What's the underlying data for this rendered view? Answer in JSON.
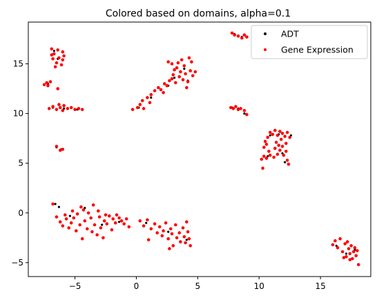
{
  "chart_data": {
    "type": "scatter",
    "title": "Colored based on domains, alpha=0.1",
    "xlabel": "",
    "ylabel": "",
    "xlim": [
      -8.8,
      19.1
    ],
    "ylim": [
      -6.4,
      19.2
    ],
    "x_ticks": [
      -5,
      0,
      5,
      10,
      15
    ],
    "y_ticks": [
      -5,
      0,
      5,
      10,
      15
    ],
    "x_tick_labels": [
      "−5",
      "0",
      "5",
      "10",
      "15"
    ],
    "y_tick_labels": [
      "−5",
      "0",
      "5",
      "10",
      "15"
    ],
    "grid": false,
    "legend": {
      "placement": "top-right"
    },
    "series": [
      {
        "name": "ADT",
        "color": "#000000",
        "marker": "dot",
        "points": [
          [
            -6.6,
            0.9
          ],
          [
            -6.3,
            0.6
          ],
          [
            -5.4,
            -0.3
          ],
          [
            -4.2,
            0.5
          ],
          [
            -2.8,
            -1.2
          ],
          [
            -1.4,
            -0.9
          ],
          [
            0.8,
            -1.0
          ],
          [
            2.6,
            -1.9
          ],
          [
            4.1,
            -2.7
          ],
          [
            -6.7,
            16.3
          ],
          [
            -6.4,
            15.5
          ],
          [
            -6.8,
            10.6
          ],
          [
            -5.9,
            10.5
          ],
          [
            -4.8,
            10.4
          ],
          [
            -7.2,
            13.0
          ],
          [
            -6.5,
            6.6
          ],
          [
            -6.1,
            6.4
          ],
          [
            0.2,
            10.6
          ],
          [
            1.2,
            11.6
          ],
          [
            2.6,
            12.8
          ],
          [
            3.1,
            13.6
          ],
          [
            3.9,
            14.5
          ],
          [
            4.2,
            13.3
          ],
          [
            8.0,
            18.0
          ],
          [
            8.6,
            17.7
          ],
          [
            7.8,
            10.6
          ],
          [
            8.3,
            10.5
          ],
          [
            8.8,
            10.0
          ],
          [
            10.9,
            7.8
          ],
          [
            11.6,
            7.9
          ],
          [
            12.6,
            7.8
          ],
          [
            10.7,
            5.7
          ],
          [
            11.9,
            6.0
          ],
          [
            12.1,
            5.1
          ],
          [
            16.3,
            -3.3
          ],
          [
            17.1,
            -4.1
          ],
          [
            17.8,
            -3.7
          ],
          [
            18.1,
            -5.2
          ]
        ]
      },
      {
        "name": "Gene Expression",
        "color": "#ff0000",
        "marker": "dot",
        "points": [
          [
            -6.9,
            16.5
          ],
          [
            -6.7,
            16.0
          ],
          [
            -6.4,
            16.4
          ],
          [
            -6.0,
            16.2
          ],
          [
            -5.9,
            15.8
          ],
          [
            -6.3,
            15.6
          ],
          [
            -6.8,
            15.5
          ],
          [
            -6.5,
            15.1
          ],
          [
            -6.1,
            14.9
          ],
          [
            -6.6,
            14.7
          ],
          [
            -6.9,
            15.9
          ],
          [
            -6.0,
            15.4
          ],
          [
            -7.5,
            12.9
          ],
          [
            -7.2,
            12.8
          ],
          [
            -7.0,
            13.2
          ],
          [
            -7.3,
            13.1
          ],
          [
            -6.4,
            12.5
          ],
          [
            -7.1,
            10.5
          ],
          [
            -6.8,
            10.7
          ],
          [
            -6.5,
            10.4
          ],
          [
            -6.2,
            10.6
          ],
          [
            -5.9,
            10.8
          ],
          [
            -5.6,
            10.5
          ],
          [
            -5.3,
            10.6
          ],
          [
            -5.0,
            10.4
          ],
          [
            -4.7,
            10.5
          ],
          [
            -4.4,
            10.4
          ],
          [
            -6.0,
            10.3
          ],
          [
            -6.3,
            10.9
          ],
          [
            -6.5,
            6.7
          ],
          [
            -6.2,
            6.3
          ],
          [
            -6.0,
            6.4
          ],
          [
            -6.8,
            0.9
          ],
          [
            -6.5,
            -0.4
          ],
          [
            -6.2,
            -0.9
          ],
          [
            -6.0,
            -1.3
          ],
          [
            -5.7,
            -0.6
          ],
          [
            -5.5,
            -1.5
          ],
          [
            -5.3,
            -1.0
          ],
          [
            -5.1,
            -0.5
          ],
          [
            -4.9,
            -1.8
          ],
          [
            -4.8,
            -0.1
          ],
          [
            -4.6,
            -1.2
          ],
          [
            -4.4,
            -2.6
          ],
          [
            -4.3,
            0.3
          ],
          [
            -4.2,
            -0.8
          ],
          [
            -4.0,
            -1.6
          ],
          [
            -3.9,
            0.0
          ],
          [
            -3.7,
            -0.5
          ],
          [
            -3.6,
            -1.9
          ],
          [
            -3.5,
            0.8
          ],
          [
            -3.4,
            -1.2
          ],
          [
            -3.2,
            -2.2
          ],
          [
            -3.0,
            -0.4
          ],
          [
            -2.9,
            -1.5
          ],
          [
            -2.7,
            -2.5
          ],
          [
            -2.6,
            -0.8
          ],
          [
            -2.4,
            -1.1
          ],
          [
            -2.2,
            -0.3
          ],
          [
            -2.0,
            -1.7
          ],
          [
            -1.9,
            -0.6
          ],
          [
            -1.7,
            -1.0
          ],
          [
            -1.6,
            -0.2
          ],
          [
            -1.4,
            -0.5
          ],
          [
            -1.2,
            -0.8
          ],
          [
            -1.0,
            -1.1
          ],
          [
            -0.8,
            -0.6
          ],
          [
            -0.6,
            -1.4
          ],
          [
            -5.8,
            -0.2
          ],
          [
            -5.2,
            0.2
          ],
          [
            -4.5,
            0.6
          ],
          [
            -3.1,
            0.2
          ],
          [
            -2.5,
            -0.2
          ],
          [
            0.3,
            -0.8
          ],
          [
            0.6,
            -1.3
          ],
          [
            0.9,
            -0.7
          ],
          [
            1.2,
            -1.6
          ],
          [
            1.5,
            -1.1
          ],
          [
            1.7,
            -2.0
          ],
          [
            1.9,
            -1.4
          ],
          [
            2.1,
            -2.3
          ],
          [
            2.2,
            -1.8
          ],
          [
            2.4,
            -1.0
          ],
          [
            2.6,
            -2.6
          ],
          [
            2.8,
            -1.6
          ],
          [
            2.9,
            -2.1
          ],
          [
            3.0,
            -3.3
          ],
          [
            3.2,
            -1.2
          ],
          [
            3.3,
            -2.5
          ],
          [
            3.5,
            -2.0
          ],
          [
            3.6,
            -2.9
          ],
          [
            3.8,
            -1.5
          ],
          [
            3.9,
            -2.4
          ],
          [
            4.0,
            -3.0
          ],
          [
            4.2,
            -1.9
          ],
          [
            4.3,
            -2.6
          ],
          [
            4.4,
            -3.3
          ],
          [
            2.7,
            -3.6
          ],
          [
            4.1,
            -0.9
          ],
          [
            1.0,
            -2.7
          ],
          [
            -0.3,
            10.4
          ],
          [
            0.1,
            10.6
          ],
          [
            0.3,
            10.9
          ],
          [
            0.5,
            11.3
          ],
          [
            0.6,
            10.5
          ],
          [
            0.9,
            11.6
          ],
          [
            1.2,
            11.9
          ],
          [
            1.5,
            12.3
          ],
          [
            1.8,
            12.6
          ],
          [
            2.0,
            12.4
          ],
          [
            2.3,
            13.0
          ],
          [
            2.5,
            12.8
          ],
          [
            2.7,
            13.3
          ],
          [
            2.9,
            13.5
          ],
          [
            3.0,
            13.9
          ],
          [
            3.2,
            13.1
          ],
          [
            3.3,
            14.6
          ],
          [
            3.4,
            15.1
          ],
          [
            3.5,
            13.7
          ],
          [
            3.6,
            14.2
          ],
          [
            3.7,
            15.4
          ],
          [
            3.8,
            13.4
          ],
          [
            3.9,
            14.8
          ],
          [
            4.0,
            14.0
          ],
          [
            4.1,
            12.6
          ],
          [
            4.2,
            13.2
          ],
          [
            4.4,
            14.3
          ],
          [
            4.6,
            13.8
          ],
          [
            4.8,
            14.2
          ],
          [
            2.6,
            15.2
          ],
          [
            2.9,
            15.0
          ],
          [
            3.1,
            14.4
          ],
          [
            4.3,
            15.6
          ],
          [
            4.5,
            15.2
          ],
          [
            1.1,
            11.1
          ],
          [
            2.2,
            12.1
          ],
          [
            7.8,
            18.1
          ],
          [
            8.0,
            17.9
          ],
          [
            8.3,
            17.8
          ],
          [
            8.6,
            17.6
          ],
          [
            8.8,
            17.9
          ],
          [
            9.0,
            17.7
          ],
          [
            7.7,
            10.6
          ],
          [
            7.9,
            10.5
          ],
          [
            8.1,
            10.7
          ],
          [
            8.3,
            10.4
          ],
          [
            8.5,
            10.5
          ],
          [
            8.8,
            10.3
          ],
          [
            9.0,
            9.9
          ],
          [
            10.7,
            7.6
          ],
          [
            10.9,
            8.1
          ],
          [
            11.1,
            7.9
          ],
          [
            11.3,
            8.3
          ],
          [
            11.5,
            7.8
          ],
          [
            11.7,
            8.2
          ],
          [
            11.9,
            8.0
          ],
          [
            12.1,
            7.7
          ],
          [
            12.3,
            8.1
          ],
          [
            12.5,
            7.6
          ],
          [
            11.4,
            7.1
          ],
          [
            11.8,
            7.4
          ],
          [
            10.4,
            6.6
          ],
          [
            10.6,
            6.9
          ],
          [
            10.8,
            6.2
          ],
          [
            10.2,
            5.4
          ],
          [
            10.4,
            5.7
          ],
          [
            10.6,
            5.5
          ],
          [
            10.9,
            5.8
          ],
          [
            11.2,
            5.6
          ],
          [
            11.5,
            5.9
          ],
          [
            11.7,
            6.3
          ],
          [
            11.9,
            6.7
          ],
          [
            12.0,
            5.8
          ],
          [
            12.2,
            6.2
          ],
          [
            12.3,
            5.3
          ],
          [
            12.4,
            4.9
          ],
          [
            11.3,
            6.5
          ],
          [
            11.6,
            6.8
          ],
          [
            10.3,
            4.5
          ],
          [
            10.5,
            7.2
          ],
          [
            12.2,
            7.0
          ],
          [
            16.0,
            -3.2
          ],
          [
            16.2,
            -2.8
          ],
          [
            16.4,
            -3.5
          ],
          [
            16.6,
            -2.6
          ],
          [
            16.8,
            -3.9
          ],
          [
            17.0,
            -3.1
          ],
          [
            17.1,
            -4.4
          ],
          [
            17.2,
            -2.9
          ],
          [
            17.3,
            -3.6
          ],
          [
            17.4,
            -4.1
          ],
          [
            17.5,
            -3.3
          ],
          [
            17.6,
            -4.6
          ],
          [
            17.7,
            -3.9
          ],
          [
            17.8,
            -3.5
          ],
          [
            17.9,
            -4.3
          ],
          [
            16.9,
            -4.5
          ],
          [
            17.4,
            -4.7
          ],
          [
            18.1,
            -5.2
          ],
          [
            18.0,
            -3.8
          ]
        ]
      }
    ]
  }
}
